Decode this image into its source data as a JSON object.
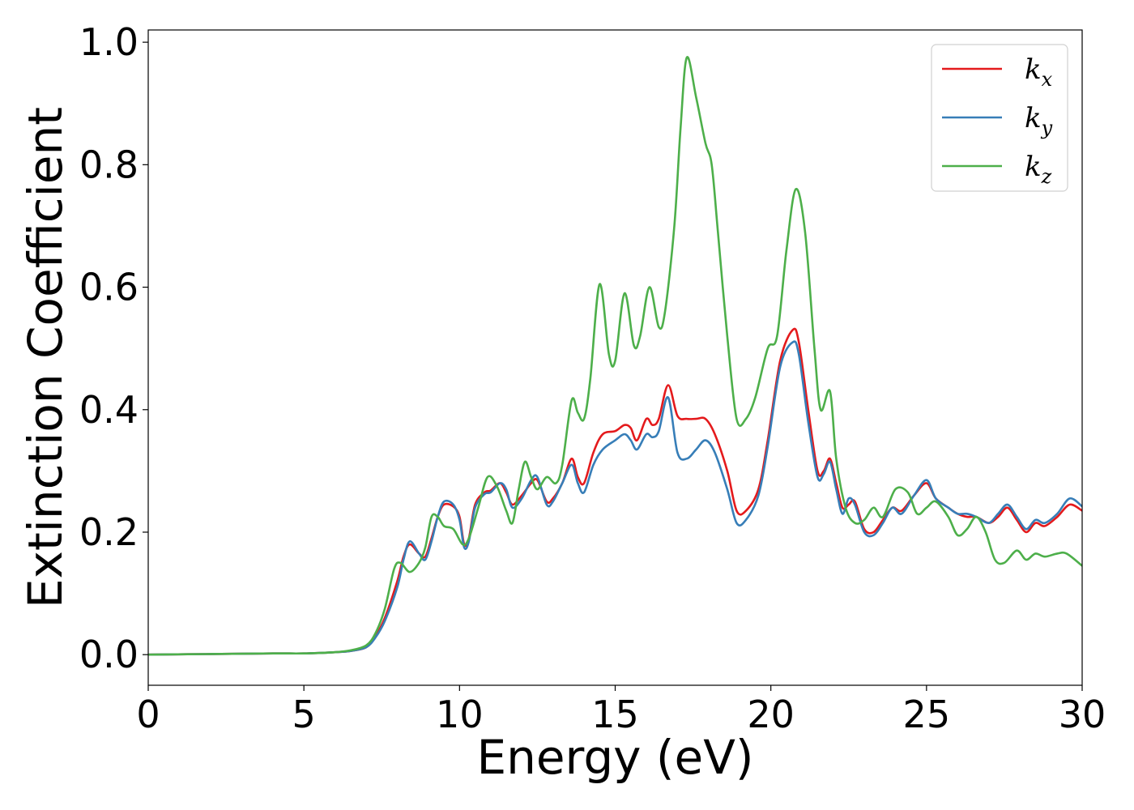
{
  "chart_data": {
    "type": "line",
    "title": "",
    "xlabel": "Energy (eV)",
    "ylabel": "Extinction Coefficient",
    "xlim": [
      0,
      30
    ],
    "ylim": [
      -0.05,
      1.02
    ],
    "xticks": [
      0,
      5,
      10,
      15,
      20,
      25,
      30
    ],
    "yticks": [
      0.0,
      0.2,
      0.4,
      0.6,
      0.8,
      1.0
    ],
    "xtick_labels": [
      "0",
      "5",
      "10",
      "15",
      "20",
      "25",
      "30"
    ],
    "ytick_labels": [
      "0.0",
      "0.2",
      "0.4",
      "0.6",
      "0.8",
      "1.0"
    ],
    "grid": false,
    "legend_position": "top-right",
    "series": [
      {
        "name": "kx",
        "legend_base": "k",
        "legend_sub": "x",
        "color": "#e41a1c",
        "points": [
          [
            0,
            0
          ],
          [
            2,
            0.001
          ],
          [
            4,
            0.002
          ],
          [
            5,
            0.002
          ],
          [
            6,
            0.004
          ],
          [
            6.5,
            0.006
          ],
          [
            7,
            0.012
          ],
          [
            7.3,
            0.03
          ],
          [
            7.6,
            0.06
          ],
          [
            8,
            0.12
          ],
          [
            8.2,
            0.16
          ],
          [
            8.4,
            0.18
          ],
          [
            8.7,
            0.165
          ],
          [
            8.9,
            0.16
          ],
          [
            9.1,
            0.19
          ],
          [
            9.3,
            0.225
          ],
          [
            9.5,
            0.245
          ],
          [
            9.8,
            0.242
          ],
          [
            10,
            0.225
          ],
          [
            10.15,
            0.18
          ],
          [
            10.3,
            0.19
          ],
          [
            10.5,
            0.245
          ],
          [
            10.8,
            0.265
          ],
          [
            11,
            0.268
          ],
          [
            11.3,
            0.28
          ],
          [
            11.5,
            0.265
          ],
          [
            11.7,
            0.245
          ],
          [
            12,
            0.26
          ],
          [
            12.3,
            0.28
          ],
          [
            12.5,
            0.285
          ],
          [
            12.8,
            0.25
          ],
          [
            13,
            0.255
          ],
          [
            13.3,
            0.28
          ],
          [
            13.6,
            0.32
          ],
          [
            13.8,
            0.29
          ],
          [
            14,
            0.28
          ],
          [
            14.3,
            0.33
          ],
          [
            14.6,
            0.36
          ],
          [
            15,
            0.365
          ],
          [
            15.3,
            0.375
          ],
          [
            15.5,
            0.37
          ],
          [
            15.7,
            0.35
          ],
          [
            16,
            0.385
          ],
          [
            16.2,
            0.375
          ],
          [
            16.4,
            0.385
          ],
          [
            16.7,
            0.44
          ],
          [
            17,
            0.39
          ],
          [
            17.3,
            0.385
          ],
          [
            17.6,
            0.385
          ],
          [
            17.9,
            0.385
          ],
          [
            18.2,
            0.36
          ],
          [
            18.6,
            0.3
          ],
          [
            18.9,
            0.235
          ],
          [
            19.2,
            0.235
          ],
          [
            19.6,
            0.27
          ],
          [
            19.9,
            0.35
          ],
          [
            20.3,
            0.48
          ],
          [
            20.7,
            0.53
          ],
          [
            20.9,
            0.51
          ],
          [
            21.2,
            0.4
          ],
          [
            21.5,
            0.3
          ],
          [
            21.7,
            0.3
          ],
          [
            21.9,
            0.32
          ],
          [
            22.1,
            0.28
          ],
          [
            22.3,
            0.24
          ],
          [
            22.5,
            0.245
          ],
          [
            22.7,
            0.25
          ],
          [
            23,
            0.205
          ],
          [
            23.3,
            0.2
          ],
          [
            23.6,
            0.22
          ],
          [
            23.9,
            0.24
          ],
          [
            24.2,
            0.235
          ],
          [
            24.6,
            0.26
          ],
          [
            25,
            0.28
          ],
          [
            25.3,
            0.255
          ],
          [
            25.7,
            0.24
          ],
          [
            26,
            0.23
          ],
          [
            26.3,
            0.225
          ],
          [
            26.6,
            0.225
          ],
          [
            27,
            0.215
          ],
          [
            27.3,
            0.225
          ],
          [
            27.6,
            0.24
          ],
          [
            27.9,
            0.22
          ],
          [
            28.2,
            0.2
          ],
          [
            28.5,
            0.215
          ],
          [
            28.8,
            0.21
          ],
          [
            29.2,
            0.225
          ],
          [
            29.6,
            0.245
          ],
          [
            30,
            0.235
          ]
        ]
      },
      {
        "name": "ky",
        "legend_base": "k",
        "legend_sub": "y",
        "color": "#377eb8",
        "points": [
          [
            0,
            0
          ],
          [
            2,
            0.001
          ],
          [
            4,
            0.002
          ],
          [
            5,
            0.002
          ],
          [
            6,
            0.004
          ],
          [
            6.5,
            0.006
          ],
          [
            7,
            0.012
          ],
          [
            7.3,
            0.028
          ],
          [
            7.6,
            0.055
          ],
          [
            8,
            0.11
          ],
          [
            8.2,
            0.155
          ],
          [
            8.4,
            0.185
          ],
          [
            8.7,
            0.165
          ],
          [
            8.9,
            0.155
          ],
          [
            9.1,
            0.185
          ],
          [
            9.3,
            0.225
          ],
          [
            9.5,
            0.25
          ],
          [
            9.8,
            0.245
          ],
          [
            10,
            0.22
          ],
          [
            10.15,
            0.175
          ],
          [
            10.3,
            0.185
          ],
          [
            10.5,
            0.24
          ],
          [
            10.8,
            0.262
          ],
          [
            11,
            0.265
          ],
          [
            11.3,
            0.28
          ],
          [
            11.5,
            0.27
          ],
          [
            11.7,
            0.24
          ],
          [
            12,
            0.255
          ],
          [
            12.3,
            0.285
          ],
          [
            12.5,
            0.29
          ],
          [
            12.8,
            0.245
          ],
          [
            13,
            0.25
          ],
          [
            13.3,
            0.28
          ],
          [
            13.6,
            0.31
          ],
          [
            13.8,
            0.28
          ],
          [
            14,
            0.265
          ],
          [
            14.3,
            0.31
          ],
          [
            14.6,
            0.335
          ],
          [
            15,
            0.35
          ],
          [
            15.3,
            0.36
          ],
          [
            15.5,
            0.35
          ],
          [
            15.7,
            0.335
          ],
          [
            16,
            0.36
          ],
          [
            16.2,
            0.355
          ],
          [
            16.4,
            0.365
          ],
          [
            16.7,
            0.42
          ],
          [
            17,
            0.33
          ],
          [
            17.3,
            0.32
          ],
          [
            17.6,
            0.335
          ],
          [
            17.9,
            0.35
          ],
          [
            18.2,
            0.33
          ],
          [
            18.6,
            0.27
          ],
          [
            18.9,
            0.215
          ],
          [
            19.2,
            0.22
          ],
          [
            19.6,
            0.26
          ],
          [
            19.9,
            0.34
          ],
          [
            20.3,
            0.47
          ],
          [
            20.7,
            0.51
          ],
          [
            20.9,
            0.49
          ],
          [
            21.2,
            0.38
          ],
          [
            21.5,
            0.29
          ],
          [
            21.7,
            0.295
          ],
          [
            21.9,
            0.315
          ],
          [
            22.1,
            0.27
          ],
          [
            22.3,
            0.23
          ],
          [
            22.5,
            0.255
          ],
          [
            22.7,
            0.245
          ],
          [
            23,
            0.2
          ],
          [
            23.3,
            0.195
          ],
          [
            23.6,
            0.215
          ],
          [
            23.9,
            0.24
          ],
          [
            24.2,
            0.23
          ],
          [
            24.6,
            0.26
          ],
          [
            25,
            0.285
          ],
          [
            25.3,
            0.255
          ],
          [
            25.7,
            0.24
          ],
          [
            26,
            0.23
          ],
          [
            26.3,
            0.23
          ],
          [
            26.6,
            0.225
          ],
          [
            27,
            0.215
          ],
          [
            27.3,
            0.23
          ],
          [
            27.6,
            0.245
          ],
          [
            27.9,
            0.225
          ],
          [
            28.2,
            0.205
          ],
          [
            28.5,
            0.22
          ],
          [
            28.8,
            0.215
          ],
          [
            29.2,
            0.23
          ],
          [
            29.6,
            0.255
          ],
          [
            30,
            0.242
          ]
        ]
      },
      {
        "name": "kz",
        "legend_base": "k",
        "legend_sub": "z",
        "color": "#4daf4a",
        "points": [
          [
            0,
            0
          ],
          [
            2,
            0.001
          ],
          [
            4,
            0.002
          ],
          [
            5,
            0.002
          ],
          [
            6,
            0.004
          ],
          [
            6.5,
            0.007
          ],
          [
            7,
            0.015
          ],
          [
            7.3,
            0.035
          ],
          [
            7.6,
            0.075
          ],
          [
            7.9,
            0.14
          ],
          [
            8.1,
            0.15
          ],
          [
            8.4,
            0.135
          ],
          [
            8.7,
            0.15
          ],
          [
            8.9,
            0.175
          ],
          [
            9.1,
            0.225
          ],
          [
            9.3,
            0.225
          ],
          [
            9.5,
            0.21
          ],
          [
            9.8,
            0.205
          ],
          [
            10.1,
            0.18
          ],
          [
            10.3,
            0.19
          ],
          [
            10.6,
            0.24
          ],
          [
            10.9,
            0.29
          ],
          [
            11.2,
            0.275
          ],
          [
            11.5,
            0.235
          ],
          [
            11.7,
            0.215
          ],
          [
            11.9,
            0.27
          ],
          [
            12.1,
            0.315
          ],
          [
            12.3,
            0.29
          ],
          [
            12.5,
            0.27
          ],
          [
            12.8,
            0.29
          ],
          [
            13.1,
            0.28
          ],
          [
            13.3,
            0.31
          ],
          [
            13.6,
            0.415
          ],
          [
            13.8,
            0.395
          ],
          [
            14,
            0.385
          ],
          [
            14.2,
            0.45
          ],
          [
            14.5,
            0.605
          ],
          [
            14.8,
            0.49
          ],
          [
            15,
            0.48
          ],
          [
            15.3,
            0.59
          ],
          [
            15.6,
            0.505
          ],
          [
            15.8,
            0.52
          ],
          [
            16.1,
            0.6
          ],
          [
            16.4,
            0.535
          ],
          [
            16.6,
            0.56
          ],
          [
            16.9,
            0.7
          ],
          [
            17.1,
            0.86
          ],
          [
            17.3,
            0.975
          ],
          [
            17.6,
            0.91
          ],
          [
            17.9,
            0.835
          ],
          [
            18.1,
            0.8
          ],
          [
            18.3,
            0.69
          ],
          [
            18.6,
            0.52
          ],
          [
            18.9,
            0.385
          ],
          [
            19.2,
            0.385
          ],
          [
            19.5,
            0.42
          ],
          [
            19.9,
            0.5
          ],
          [
            20.2,
            0.52
          ],
          [
            20.5,
            0.66
          ],
          [
            20.8,
            0.76
          ],
          [
            21.1,
            0.69
          ],
          [
            21.4,
            0.5
          ],
          [
            21.6,
            0.4
          ],
          [
            21.9,
            0.43
          ],
          [
            22.1,
            0.32
          ],
          [
            22.4,
            0.24
          ],
          [
            22.7,
            0.215
          ],
          [
            23,
            0.22
          ],
          [
            23.3,
            0.24
          ],
          [
            23.6,
            0.225
          ],
          [
            24,
            0.27
          ],
          [
            24.4,
            0.265
          ],
          [
            24.7,
            0.23
          ],
          [
            25,
            0.24
          ],
          [
            25.3,
            0.25
          ],
          [
            25.7,
            0.225
          ],
          [
            26,
            0.195
          ],
          [
            26.3,
            0.205
          ],
          [
            26.6,
            0.225
          ],
          [
            26.9,
            0.2
          ],
          [
            27.2,
            0.155
          ],
          [
            27.5,
            0.15
          ],
          [
            27.9,
            0.17
          ],
          [
            28.2,
            0.155
          ],
          [
            28.5,
            0.165
          ],
          [
            28.8,
            0.16
          ],
          [
            29.2,
            0.165
          ],
          [
            29.5,
            0.165
          ],
          [
            30,
            0.145
          ]
        ]
      }
    ]
  }
}
